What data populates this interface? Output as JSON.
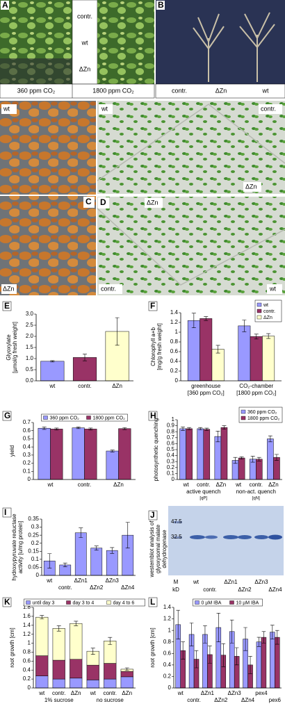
{
  "panels": {
    "A": {
      "letter": "A",
      "rows": [
        "contr.",
        "wt",
        "ΔZn"
      ],
      "conditions": [
        "360 ppm CO₂",
        "1800 ppm CO₂"
      ]
    },
    "B": {
      "letter": "B",
      "labels": [
        "contr.",
        "ΔZn",
        "wt"
      ]
    },
    "C": {
      "letter": "C",
      "labels": [
        "wt",
        "ΔZn"
      ]
    },
    "D": {
      "letter": "D",
      "labels": [
        "wt",
        "contr.",
        "ΔZn",
        "ΔZn",
        "contr.",
        "wt"
      ]
    },
    "J": {
      "letter": "J",
      "ylabel": [
        "westernblot analysis of",
        "glyoxysomal malate",
        "dehydrogenase"
      ],
      "markers": [
        "47.5",
        "32.5"
      ],
      "units": [
        "M",
        "kD"
      ],
      "lanes": [
        "wt",
        "contr.",
        "ΔZn1",
        "ΔZn2",
        "ΔZn3",
        "ΔZn4"
      ]
    }
  },
  "chart_data": [
    {
      "type": "bar",
      "label": "E",
      "ylabel": [
        "Glyoxylate",
        "[µmol/g fresh weight]"
      ],
      "categories": [
        "wt",
        "contr.",
        "ΔZn"
      ],
      "values": [
        0.88,
        1.05,
        2.22
      ],
      "errors": [
        0.03,
        0.15,
        0.62
      ],
      "colors": [
        "#9999ff",
        "#993366",
        "#ffffcc"
      ],
      "ylim": [
        0,
        3
      ],
      "yticks": [
        {
          "value": 0,
          "label": "0.0"
        },
        0.5,
        {
          "value": 1,
          "label": "1.0"
        },
        1.5,
        {
          "value": 2,
          "label": "2.0"
        },
        2.5,
        {
          "value": 3,
          "label": "3.0"
        }
      ]
    },
    {
      "type": "bar",
      "label": "F",
      "ylabel": [
        "Chlorophyll a+b",
        "[mg/g fresh weight]"
      ],
      "categories": [
        "greenhouse",
        "CO₂-chamber"
      ],
      "category_notes": [
        "[360 ppm CO₂]",
        "[1800 ppm CO₂]"
      ],
      "series": [
        {
          "name": "wt",
          "color": "#9999ff",
          "values": [
            1.24,
            1.13
          ],
          "errors": [
            0.15,
            0.12
          ]
        },
        {
          "name": "contr.",
          "color": "#993366",
          "values": [
            1.28,
            0.91
          ],
          "errors": [
            0.04,
            0.05
          ]
        },
        {
          "name": "ΔZn",
          "color": "#ffffcc",
          "values": [
            0.65,
            0.92
          ],
          "errors": [
            0.08,
            0.05
          ]
        }
      ],
      "ylim": [
        0,
        1.4
      ],
      "yticks": [
        0,
        0.2,
        0.4,
        0.6,
        0.8,
        1,
        1.2,
        1.4
      ],
      "legend": "top-right"
    },
    {
      "type": "bar",
      "label": "G",
      "ylabel": [
        "yield"
      ],
      "categories": [
        "wt",
        "contr.",
        "ΔZn"
      ],
      "series": [
        {
          "name": "360 ppm CO₂",
          "color": "#9999ff",
          "values": [
            0.63,
            0.635,
            0.35
          ],
          "errors": [
            0.015,
            0.01,
            0.012
          ]
        },
        {
          "name": "1800 ppm CO₂",
          "color": "#993366",
          "values": [
            0.62,
            0.62,
            0.625
          ],
          "errors": [
            0.012,
            0.012,
            0.012
          ]
        }
      ],
      "ylim": [
        0,
        0.7
      ],
      "yticks": [
        0,
        0.1,
        0.2,
        0.3,
        0.4,
        0.5,
        0.6,
        0.7
      ],
      "legend": "top"
    },
    {
      "type": "bar",
      "label": "H",
      "ylabel": [
        "photosynthetic quenching"
      ],
      "categories": [
        "wt",
        "contr.",
        "ΔZn",
        "wt",
        "contr.",
        "ΔZn"
      ],
      "groups": [
        "active quench",
        "non-act. quench"
      ],
      "group_notes": [
        "[qP]",
        "[qN]"
      ],
      "series": [
        {
          "name": "360 ppm CO₂",
          "color": "#9999ff",
          "values": [
            0.85,
            0.85,
            0.72,
            0.32,
            0.34,
            0.68
          ],
          "errors": [
            0.03,
            0.02,
            0.09,
            0.05,
            0.05,
            0.05
          ]
        },
        {
          "name": "1800 ppm CO₂",
          "color": "#993366",
          "values": [
            0.85,
            0.84,
            0.87,
            0.36,
            0.34,
            0.37
          ],
          "errors": [
            0.02,
            0.02,
            0.03,
            0.02,
            0.03,
            0.05
          ]
        }
      ],
      "ylim": [
        0,
        1
      ],
      "yticks": [
        0,
        0.1,
        0.2,
        0.3,
        0.4,
        0.5,
        0.6,
        0.7,
        0.8,
        0.9,
        1
      ],
      "legend": "top-right"
    },
    {
      "type": "bar",
      "label": "I",
      "ylabel": [
        "hydroxypyruvate reductase",
        "activity [u/mg protein]"
      ],
      "categories": [
        "wt",
        "contr.",
        "ΔZn1",
        "ΔZn2",
        "ΔZn3",
        "ΔZn4"
      ],
      "values": [
        0.09,
        0.065,
        0.265,
        0.17,
        0.155,
        0.25
      ],
      "errors": [
        0.045,
        0.012,
        0.03,
        0.013,
        0.018,
        0.08
      ],
      "color": "#9999ff",
      "ylim": [
        0,
        0.35
      ],
      "yticks": [
        0,
        0.05,
        0.1,
        0.15,
        0.2,
        0.25,
        0.3,
        0.35
      ]
    },
    {
      "type": "stacked_bar",
      "label": "K",
      "ylabel": [
        "root growth [cm]"
      ],
      "categories": [
        "wt",
        "contr.",
        "ΔZn",
        "wt",
        "contr.",
        "ΔZn"
      ],
      "groups": [
        "1% sucrose",
        "no sucrose"
      ],
      "series": [
        {
          "name": "until day 3",
          "color": "#9999ff",
          "values": [
            0.27,
            0.2,
            0.22,
            0.18,
            0.2,
            0.25
          ]
        },
        {
          "name": "day 3 to 4",
          "color": "#993366",
          "values": [
            0.45,
            0.42,
            0.42,
            0.33,
            0.35,
            0.12
          ]
        },
        {
          "name": "day 4 to 6",
          "color": "#ffffcc",
          "values": [
            0.86,
            0.71,
            0.8,
            0.31,
            0.5,
            0.05
          ],
          "errors": [
            0.04,
            0.06,
            0.05,
            0.07,
            0.08,
            0.03
          ]
        }
      ],
      "ylim": [
        0,
        1.8
      ],
      "yticks": [
        0,
        0.2,
        0.4,
        0.6,
        0.8,
        1,
        1.2,
        1.4,
        1.6,
        1.8
      ],
      "legend": "top"
    },
    {
      "type": "bar",
      "label": "L",
      "ylabel": [
        "root growth [cm]"
      ],
      "categories": [
        "wt",
        "contr.",
        "ΔZn1",
        "ΔZn2",
        "ΔZn3",
        "ΔZn4",
        "pex4",
        "pex6"
      ],
      "series": [
        {
          "name": "0 µM IBA",
          "color": "#9999ff",
          "values": [
            1.1,
            0.93,
            0.93,
            1.05,
            0.98,
            0.85,
            0.8,
            0.97
          ],
          "errors": [
            0.25,
            0.2,
            0.15,
            0.25,
            0.2,
            0.2,
            0.08,
            0.12
          ]
        },
        {
          "name": "10 µM IBA",
          "color": "#993366",
          "values": [
            0.65,
            0.5,
            0.58,
            0.57,
            0.55,
            0.4,
            0.88,
            0.88
          ],
          "errors": [
            0.15,
            0.15,
            0.15,
            0.2,
            0.15,
            0.15,
            0.1,
            0.12
          ]
        }
      ],
      "ylim": [
        0,
        1.4
      ],
      "yticks": [
        0,
        0.2,
        0.4,
        0.6,
        0.8,
        1,
        1.2,
        1.4
      ],
      "legend": "top"
    }
  ]
}
